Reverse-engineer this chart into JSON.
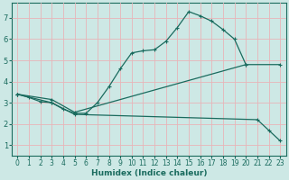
{
  "xlabel": "Humidex (Indice chaleur)",
  "background_color": "#cde8e5",
  "grid_color": "#e8b4b8",
  "line_color": "#1a6b5e",
  "xlim": [
    -0.5,
    23.5
  ],
  "ylim": [
    0.5,
    7.7
  ],
  "xticks": [
    0,
    1,
    2,
    3,
    4,
    5,
    6,
    7,
    8,
    9,
    10,
    11,
    12,
    13,
    14,
    15,
    16,
    17,
    18,
    19,
    20,
    21,
    22,
    23
  ],
  "yticks": [
    1,
    2,
    3,
    4,
    5,
    6,
    7
  ],
  "line1_x": [
    0,
    1,
    2,
    3,
    4,
    5,
    6,
    7,
    8,
    9,
    10,
    11,
    12,
    13,
    14,
    15,
    16,
    17,
    18,
    19,
    20
  ],
  "line1_y": [
    3.4,
    3.25,
    3.05,
    3.0,
    2.7,
    2.5,
    2.5,
    3.0,
    3.75,
    4.6,
    5.35,
    5.45,
    5.5,
    5.9,
    6.55,
    7.3,
    7.1,
    6.85,
    6.45,
    6.0,
    4.8
  ],
  "line2_x": [
    0,
    3,
    5,
    20,
    23
  ],
  "line2_y": [
    3.4,
    3.15,
    2.55,
    4.8,
    4.8
  ],
  "line3_x": [
    0,
    3,
    5,
    21,
    22,
    23
  ],
  "line3_y": [
    3.4,
    3.0,
    2.45,
    2.2,
    1.7,
    1.2
  ],
  "xlabel_fontsize": 6.5,
  "tick_fontsize": 5.5,
  "linewidth": 0.9,
  "markersize": 3,
  "markeredgewidth": 0.8
}
